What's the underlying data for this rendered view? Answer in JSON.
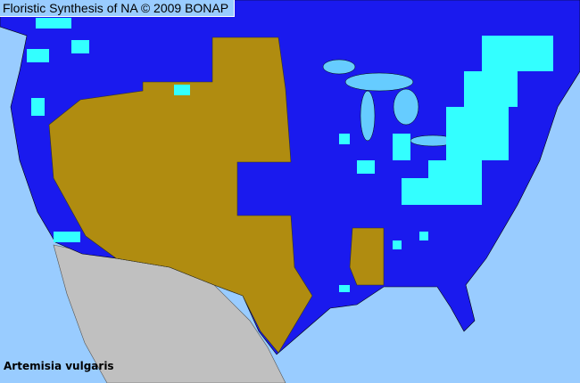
{
  "header": {
    "title": "Floristic Synthesis of NA © 2009 BONAP"
  },
  "map": {
    "species_label": "Artemisia vulgaris",
    "colors": {
      "ocean": "#99ccff",
      "present_native": "#1a1aee",
      "present_common": "#33ffff",
      "absent_state": "#b08c10",
      "not_covered": "#c0c0c0",
      "lakes": "#66ccff"
    }
  }
}
